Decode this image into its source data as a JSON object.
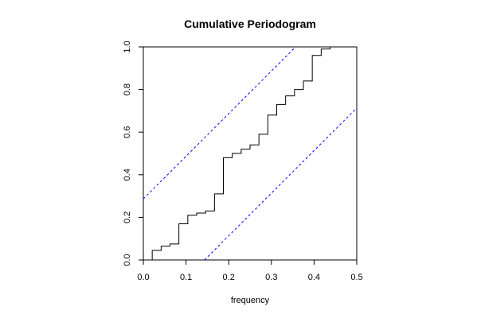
{
  "chart_data": {
    "type": "line",
    "title": "Cumulative Periodogram",
    "xlabel": "frequency",
    "ylabel": "",
    "xlim": [
      0,
      0.5
    ],
    "ylim": [
      0,
      1
    ],
    "x_ticks": [
      "0.0",
      "0.1",
      "0.2",
      "0.3",
      "0.4",
      "0.5"
    ],
    "y_ticks": [
      "0.0",
      "0.2",
      "0.4",
      "0.6",
      "0.8",
      "1.0"
    ],
    "grid": false,
    "series": [
      {
        "style": "step",
        "color": "#000000",
        "x": [
          0.0,
          0.0208,
          0.0417,
          0.0625,
          0.0833,
          0.1042,
          0.125,
          0.1458,
          0.1667,
          0.1875,
          0.2083,
          0.2292,
          0.25,
          0.2708,
          0.2917,
          0.3125,
          0.3333,
          0.3542,
          0.375,
          0.3958,
          0.4167,
          0.4375,
          0.4583,
          0.5
        ],
        "y": [
          0.0,
          0.045,
          0.065,
          0.075,
          0.17,
          0.21,
          0.22,
          0.23,
          0.31,
          0.48,
          0.5,
          0.52,
          0.54,
          0.59,
          0.68,
          0.73,
          0.77,
          0.8,
          0.84,
          0.96,
          0.99,
          1.0,
          1.0,
          1.0
        ]
      },
      {
        "style": "dashed",
        "color": "#0000ff",
        "x": [
          0.0,
          0.3567
        ],
        "y": [
          0.2867,
          1.0
        ]
      },
      {
        "style": "dashed",
        "color": "#0000ff",
        "x": [
          0.1433,
          0.5
        ],
        "y": [
          0.0,
          0.7133
        ]
      }
    ]
  }
}
